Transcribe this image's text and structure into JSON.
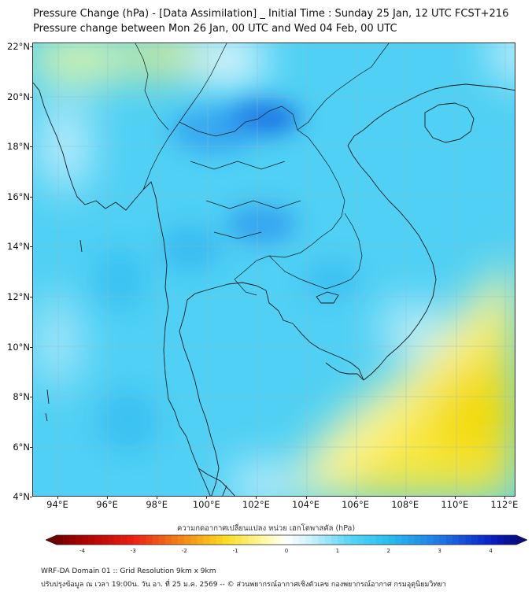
{
  "header": {
    "title_line1": "Pressure Change (hPa) - [Data Assimilation] _ Initial Time : Sunday 25 Jan, 12 UTC FCST+216",
    "title_line2": "Pressure change between Mon 26 Jan, 00 UTC and Wed 04 Feb, 00 UTC"
  },
  "map": {
    "lat_labels": [
      "22°N",
      "20°N",
      "18°N",
      "16°N",
      "14°N",
      "12°N",
      "10°N",
      "8°N",
      "6°N",
      "4°N"
    ],
    "lon_labels": [
      "94°E",
      "96°E",
      "98°E",
      "100°E",
      "102°E",
      "104°E",
      "106°E",
      "108°E",
      "110°E",
      "112°E"
    ],
    "colors": {
      "land_line": "#1a1a1a",
      "pos_strong": "#1e78e6",
      "pos": "#3cc8f0",
      "neutral": "#ffffff",
      "neg": "#f5e020"
    }
  },
  "colorbar": {
    "title": "ความกดอากาศเปลี่ยนแปลง หน่วย เฮกโตพาสคัล (hPa)",
    "ticks": [
      "-4",
      "-3",
      "-2",
      "-1",
      "0",
      "1",
      "2",
      "3",
      "4"
    ],
    "min": -4.5,
    "max": 4.5
  },
  "footer": {
    "line1": "WRF-DA Domain 01 :: Grid Resolution 9km x 9km",
    "line2": "ปรับปรุงข้อมูล ณ เวลา 19:00น. วัน อา. ที่ 25 ม.ค. 2569 -- © ส่วนพยากรณ์อากาศเชิงตัวเลข กองพยากรณ์อากาศ กรมอุตุนิยมวิทยา"
  }
}
